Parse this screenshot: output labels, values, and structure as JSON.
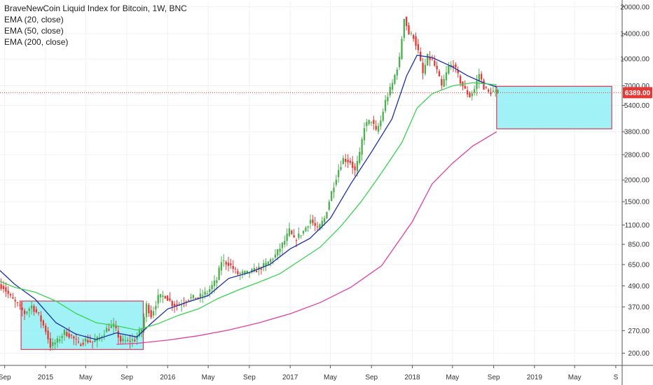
{
  "chart_data": {
    "type": "candlestick",
    "title": "BraveNewCoin Liquid Index for Bitcoin, 1W, BNC",
    "indicators": [
      {
        "name": "EMA (20, close)",
        "color": "#1a2fa6"
      },
      {
        "name": "EMA (50, close)",
        "color": "#39d353"
      },
      {
        "name": "EMA (200, close)",
        "color": "#e040a0"
      }
    ],
    "y_axis": {
      "scale": "log",
      "ticks": [
        200,
        270,
        370,
        490,
        650,
        850,
        1100,
        1500,
        2000,
        2800,
        3800,
        5400,
        7000,
        10000,
        14000,
        20000
      ],
      "tick_labels": [
        "200.00",
        "270.00",
        "370.00",
        "490.00",
        "650.00",
        "850.00",
        "1100.00",
        "1500.00",
        "2000.00",
        "2800.00",
        "3800.00",
        "5400.00",
        "7000.00",
        "10000.00",
        "14000.00",
        "20000.00"
      ],
      "range": [
        170,
        21500
      ]
    },
    "x_axis": {
      "range": [
        "2014-08-18",
        "2019-09-20"
      ],
      "ticks": [
        {
          "date": "2014-09-01",
          "label": "Sep"
        },
        {
          "date": "2015-01-01",
          "label": "2015"
        },
        {
          "date": "2015-05-01",
          "label": "May"
        },
        {
          "date": "2015-09-01",
          "label": "Sep"
        },
        {
          "date": "2016-01-01",
          "label": "2016"
        },
        {
          "date": "2016-05-01",
          "label": "May"
        },
        {
          "date": "2016-09-01",
          "label": "Sep"
        },
        {
          "date": "2017-01-01",
          "label": "2017"
        },
        {
          "date": "2017-05-01",
          "label": "May"
        },
        {
          "date": "2017-09-01",
          "label": "Sep"
        },
        {
          "date": "2018-01-01",
          "label": "2018"
        },
        {
          "date": "2018-05-01",
          "label": "May"
        },
        {
          "date": "2018-09-01",
          "label": "Sep"
        },
        {
          "date": "2019-01-01",
          "label": "2019"
        },
        {
          "date": "2019-05-01",
          "label": "May"
        },
        {
          "date": "2019-09-01",
          "label": "S"
        }
      ]
    },
    "last_price": {
      "value": 6389.0,
      "label": "6389.00"
    },
    "price_path": [
      [
        "2014-08-18",
        500
      ],
      [
        "2014-09-01",
        480
      ],
      [
        "2014-09-22",
        420
      ],
      [
        "2014-10-13",
        380
      ],
      [
        "2014-11-03",
        340
      ],
      [
        "2014-11-24",
        375
      ],
      [
        "2014-12-15",
        330
      ],
      [
        "2015-01-05",
        270
      ],
      [
        "2015-01-19",
        220
      ],
      [
        "2015-02-09",
        235
      ],
      [
        "2015-03-02",
        265
      ],
      [
        "2015-03-23",
        250
      ],
      [
        "2015-04-13",
        225
      ],
      [
        "2015-05-04",
        238
      ],
      [
        "2015-05-25",
        232
      ],
      [
        "2015-06-15",
        245
      ],
      [
        "2015-07-06",
        275
      ],
      [
        "2015-07-27",
        288
      ],
      [
        "2015-08-17",
        235
      ],
      [
        "2015-09-07",
        235
      ],
      [
        "2015-09-28",
        240
      ],
      [
        "2015-10-19",
        275
      ],
      [
        "2015-11-02",
        380
      ],
      [
        "2015-11-16",
        330
      ],
      [
        "2015-12-07",
        420
      ],
      [
        "2015-12-28",
        430
      ],
      [
        "2016-01-18",
        385
      ],
      [
        "2016-02-08",
        380
      ],
      [
        "2016-03-07",
        415
      ],
      [
        "2016-04-04",
        420
      ],
      [
        "2016-05-02",
        450
      ],
      [
        "2016-05-30",
        530
      ],
      [
        "2016-06-13",
        680
      ],
      [
        "2016-07-04",
        660
      ],
      [
        "2016-08-01",
        575
      ],
      [
        "2016-08-29",
        580
      ],
      [
        "2016-09-26",
        605
      ],
      [
        "2016-10-24",
        650
      ],
      [
        "2016-11-21",
        735
      ],
      [
        "2016-12-19",
        890
      ],
      [
        "2017-01-02",
        1020
      ],
      [
        "2017-01-16",
        900
      ],
      [
        "2017-02-13",
        1010
      ],
      [
        "2017-03-06",
        1180
      ],
      [
        "2017-03-27",
        1030
      ],
      [
        "2017-04-17",
        1200
      ],
      [
        "2017-05-08",
        1700
      ],
      [
        "2017-05-29",
        2300
      ],
      [
        "2017-06-12",
        2650
      ],
      [
        "2017-07-03",
        2550
      ],
      [
        "2017-07-17",
        2250
      ],
      [
        "2017-07-31",
        2800
      ],
      [
        "2017-08-14",
        4100
      ],
      [
        "2017-09-04",
        4450
      ],
      [
        "2017-09-18",
        3800
      ],
      [
        "2017-10-02",
        4400
      ],
      [
        "2017-10-16",
        5700
      ],
      [
        "2017-11-06",
        7200
      ],
      [
        "2017-11-27",
        10000
      ],
      [
        "2017-12-11",
        17500
      ],
      [
        "2017-12-25",
        14000
      ],
      [
        "2018-01-08",
        13500
      ],
      [
        "2018-01-22",
        11000
      ],
      [
        "2018-02-05",
        8200
      ],
      [
        "2018-02-19",
        10300
      ],
      [
        "2018-03-05",
        9800
      ],
      [
        "2018-03-19",
        8500
      ],
      [
        "2018-04-02",
        6900
      ],
      [
        "2018-04-23",
        9000
      ],
      [
        "2018-05-07",
        9300
      ],
      [
        "2018-05-28",
        7400
      ],
      [
        "2018-06-11",
        6600
      ],
      [
        "2018-06-25",
        6100
      ],
      [
        "2018-07-09",
        6700
      ],
      [
        "2018-07-23",
        8200
      ],
      [
        "2018-08-06",
        6900
      ],
      [
        "2018-08-20",
        6400
      ],
      [
        "2018-09-03",
        6500
      ],
      [
        "2018-09-10",
        6389
      ]
    ],
    "ema_20": [
      [
        "2014-08-18",
        600
      ],
      [
        "2014-10-01",
        500
      ],
      [
        "2014-12-01",
        410
      ],
      [
        "2015-02-01",
        300
      ],
      [
        "2015-04-01",
        258
      ],
      [
        "2015-06-01",
        240
      ],
      [
        "2015-08-01",
        262
      ],
      [
        "2015-10-01",
        248
      ],
      [
        "2015-11-15",
        300
      ],
      [
        "2016-01-01",
        360
      ],
      [
        "2016-03-01",
        395
      ],
      [
        "2016-05-01",
        430
      ],
      [
        "2016-07-01",
        540
      ],
      [
        "2016-09-01",
        585
      ],
      [
        "2016-11-01",
        650
      ],
      [
        "2017-01-01",
        800
      ],
      [
        "2017-03-01",
        920
      ],
      [
        "2017-05-01",
        1200
      ],
      [
        "2017-07-01",
        1900
      ],
      [
        "2017-09-01",
        2900
      ],
      [
        "2017-11-01",
        4500
      ],
      [
        "2017-12-15",
        8000
      ],
      [
        "2018-01-15",
        10500
      ],
      [
        "2018-03-01",
        10200
      ],
      [
        "2018-05-01",
        9000
      ],
      [
        "2018-06-15",
        8000
      ],
      [
        "2018-08-01",
        7300
      ],
      [
        "2018-09-10",
        6900
      ]
    ],
    "ema_50": [
      [
        "2014-08-18",
        520
      ],
      [
        "2014-10-01",
        480
      ],
      [
        "2014-12-01",
        450
      ],
      [
        "2015-02-01",
        400
      ],
      [
        "2015-04-01",
        340
      ],
      [
        "2015-06-01",
        300
      ],
      [
        "2015-08-01",
        288
      ],
      [
        "2015-10-01",
        272
      ],
      [
        "2015-12-01",
        295
      ],
      [
        "2016-02-01",
        330
      ],
      [
        "2016-04-01",
        360
      ],
      [
        "2016-06-01",
        415
      ],
      [
        "2016-08-01",
        465
      ],
      [
        "2016-10-01",
        515
      ],
      [
        "2016-12-01",
        575
      ],
      [
        "2017-02-01",
        690
      ],
      [
        "2017-04-01",
        820
      ],
      [
        "2017-06-01",
        1080
      ],
      [
        "2017-08-01",
        1500
      ],
      [
        "2017-10-01",
        2200
      ],
      [
        "2017-12-01",
        3300
      ],
      [
        "2018-01-15",
        5200
      ],
      [
        "2018-03-01",
        6300
      ],
      [
        "2018-05-01",
        7000
      ],
      [
        "2018-07-01",
        7300
      ],
      [
        "2018-09-10",
        7100
      ]
    ],
    "ema_200": [
      [
        "2015-08-01",
        225
      ],
      [
        "2015-10-01",
        228
      ],
      [
        "2016-01-01",
        238
      ],
      [
        "2016-04-01",
        252
      ],
      [
        "2016-07-01",
        272
      ],
      [
        "2016-10-01",
        300
      ],
      [
        "2017-01-01",
        338
      ],
      [
        "2017-04-01",
        392
      ],
      [
        "2017-07-01",
        480
      ],
      [
        "2017-10-01",
        640
      ],
      [
        "2018-01-01",
        1150
      ],
      [
        "2018-03-01",
        1900
      ],
      [
        "2018-05-01",
        2500
      ],
      [
        "2018-07-01",
        3150
      ],
      [
        "2018-09-10",
        3800
      ]
    ],
    "annotations": [
      {
        "type": "box",
        "x0": "2014-10-20",
        "x1": "2015-10-20",
        "y0": 210,
        "y1": 400,
        "fill": "#8ff0f5",
        "stroke": "#d43c5a"
      },
      {
        "type": "box",
        "x0": "2018-09-10",
        "x1": "2019-08-20",
        "y0": 3950,
        "y1": 6950,
        "fill": "#8ff0f5",
        "stroke": "#d43c5a"
      },
      {
        "type": "hline",
        "y": 6389,
        "color": "#e53935",
        "style": "dotted"
      }
    ],
    "colors": {
      "up": "#4caf50",
      "down": "#e53935",
      "background": "#ffffff",
      "grid": "#eef1f5",
      "axis": "#555555",
      "price_tag": "#e53935"
    }
  }
}
